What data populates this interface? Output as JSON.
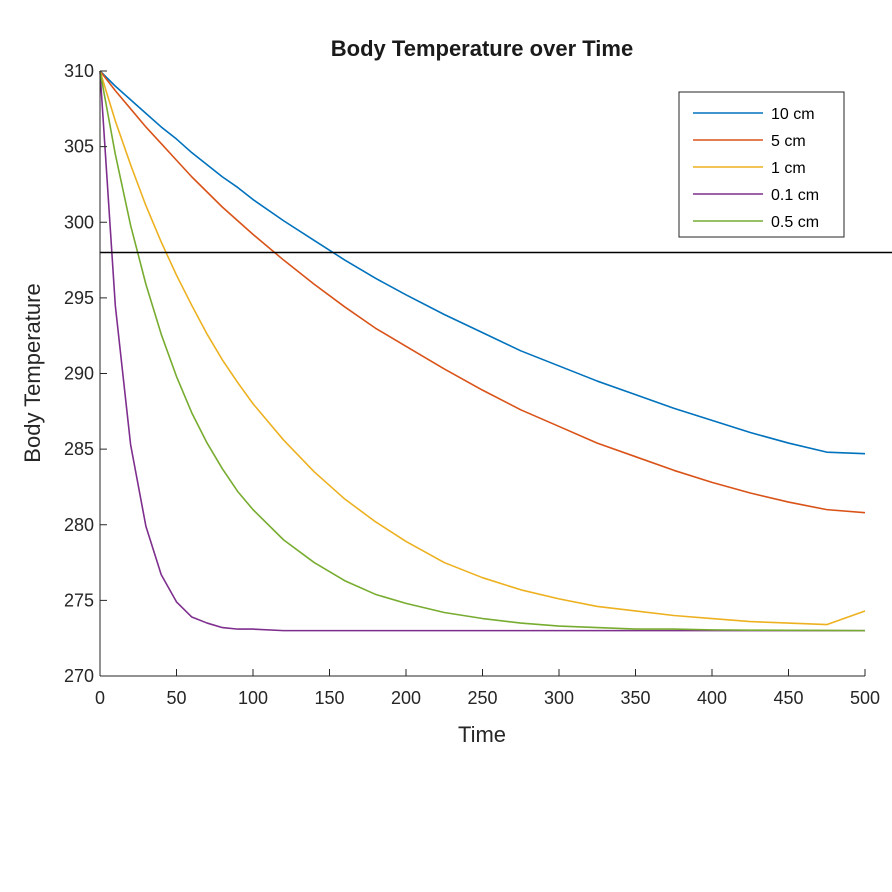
{
  "chart_data": {
    "type": "line",
    "title": "Body Temperature over Time",
    "xlabel": "Time",
    "ylabel": "Body Temperature",
    "xlim": [
      0,
      500
    ],
    "ylim": [
      270,
      310
    ],
    "xticks": [
      0,
      50,
      100,
      150,
      200,
      250,
      300,
      350,
      400,
      450,
      500
    ],
    "yticks": [
      270,
      275,
      280,
      285,
      290,
      295,
      300,
      305,
      310
    ],
    "grid": false,
    "legend_position": "top-right",
    "x": [
      0,
      10,
      20,
      30,
      40,
      50,
      60,
      70,
      80,
      90,
      100,
      120,
      140,
      160,
      180,
      200,
      225,
      250,
      275,
      300,
      325,
      350,
      375,
      400,
      425,
      450,
      475,
      500
    ],
    "series": [
      {
        "name": "10 cm",
        "color": "#0072BD",
        "values": [
          310.0,
          309.0,
          308.1,
          307.2,
          306.3,
          305.5,
          304.6,
          303.8,
          303.0,
          302.3,
          301.5,
          300.1,
          298.8,
          297.5,
          296.3,
          295.2,
          293.9,
          292.7,
          291.5,
          290.5,
          289.5,
          288.6,
          287.7,
          286.9,
          286.1,
          285.4,
          284.8,
          284.7
        ]
      },
      {
        "name": "5 cm",
        "color": "#D95319",
        "values": [
          310.0,
          308.7,
          307.5,
          306.3,
          305.2,
          304.1,
          303.0,
          302.0,
          301.0,
          300.1,
          299.2,
          297.5,
          295.9,
          294.4,
          293.0,
          291.8,
          290.3,
          288.9,
          287.6,
          286.5,
          285.4,
          284.5,
          283.6,
          282.8,
          282.1,
          281.5,
          281.0,
          280.8
        ]
      },
      {
        "name": "1 cm",
        "color": "#EDB120",
        "values": [
          310.0,
          306.7,
          303.8,
          301.1,
          298.7,
          296.5,
          294.5,
          292.6,
          290.9,
          289.4,
          288.0,
          285.6,
          283.5,
          281.7,
          280.2,
          278.9,
          277.5,
          276.5,
          275.7,
          275.1,
          274.6,
          274.3,
          274.0,
          273.8,
          273.6,
          273.5,
          273.4,
          274.3
        ]
      },
      {
        "name": "0.1 cm",
        "color": "#7E2F8E",
        "values": [
          310.0,
          294.5,
          285.3,
          279.9,
          276.7,
          274.9,
          273.9,
          273.5,
          273.2,
          273.1,
          273.1,
          273.0,
          273.0,
          273.0,
          273.0,
          273.0,
          273.0,
          273.0,
          273.0,
          273.0,
          273.0,
          273.0,
          273.0,
          273.0,
          273.0,
          273.0,
          273.0,
          273.0
        ]
      },
      {
        "name": "0.5 cm",
        "color": "#77AC30",
        "values": [
          310.0,
          304.5,
          299.8,
          295.9,
          292.6,
          289.8,
          287.4,
          285.4,
          283.7,
          282.2,
          281.0,
          279.0,
          277.5,
          276.3,
          275.4,
          274.8,
          274.2,
          273.8,
          273.5,
          273.3,
          273.2,
          273.1,
          273.1,
          273.05,
          273.03,
          273.02,
          273.01,
          273.0
        ]
      }
    ],
    "reference_line": {
      "y": 298,
      "color": "#000000"
    }
  }
}
